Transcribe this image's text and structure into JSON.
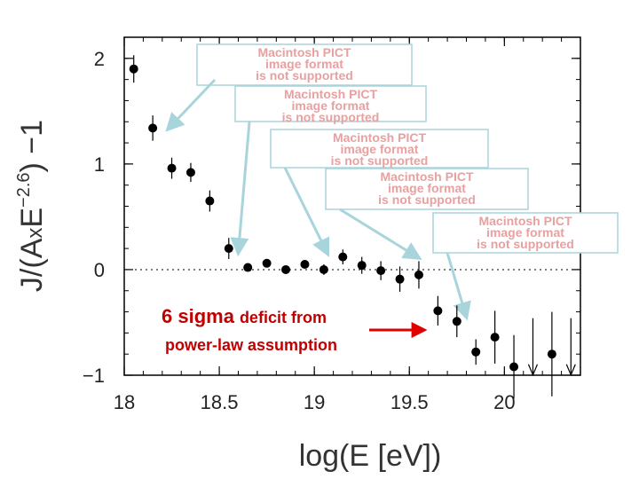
{
  "chart_data": {
    "type": "scatter",
    "title": "",
    "xlabel": "log(E [eV])",
    "ylabel_parts": {
      "pre": "J/(A",
      "times": "x",
      "E": "E",
      "exp": "−2.6",
      "post": ") −1"
    },
    "xlim": [
      18.0,
      20.4
    ],
    "ylim": [
      -1.0,
      2.2
    ],
    "x_ticks": [
      18,
      18.5,
      19,
      19.5,
      20
    ],
    "x_tick_labels": [
      "18",
      "18.5",
      "19",
      "19.5",
      "20"
    ],
    "y_ticks": [
      2,
      1,
      0,
      -1
    ],
    "y_tick_labels": [
      "2",
      "1",
      "0",
      "−1"
    ],
    "reference_line_y": 0,
    "points": [
      {
        "x": 18.05,
        "y": 1.9,
        "err": 0.13
      },
      {
        "x": 18.15,
        "y": 1.34,
        "err": 0.12
      },
      {
        "x": 18.25,
        "y": 0.96,
        "err": 0.1
      },
      {
        "x": 18.35,
        "y": 0.92,
        "err": 0.09
      },
      {
        "x": 18.45,
        "y": 0.65,
        "err": 0.1
      },
      {
        "x": 18.55,
        "y": 0.2,
        "err": 0.1
      },
      {
        "x": 18.65,
        "y": 0.02,
        "err": 0.03
      },
      {
        "x": 18.75,
        "y": 0.06,
        "err": 0.04
      },
      {
        "x": 18.85,
        "y": 0.0,
        "err": 0.03
      },
      {
        "x": 18.95,
        "y": 0.05,
        "err": 0.04
      },
      {
        "x": 19.05,
        "y": 0.0,
        "err": 0.05
      },
      {
        "x": 19.15,
        "y": 0.12,
        "err": 0.07
      },
      {
        "x": 19.25,
        "y": 0.04,
        "err": 0.08
      },
      {
        "x": 19.35,
        "y": -0.01,
        "err": 0.09
      },
      {
        "x": 19.45,
        "y": -0.09,
        "err": 0.12
      },
      {
        "x": 19.55,
        "y": -0.05,
        "err": 0.13
      },
      {
        "x": 19.65,
        "y": -0.39,
        "err": 0.14
      },
      {
        "x": 19.75,
        "y": -0.49,
        "err": 0.15
      },
      {
        "x": 19.85,
        "y": -0.78,
        "err": 0.12
      },
      {
        "x": 19.95,
        "y": -0.64,
        "err": 0.25
      },
      {
        "x": 20.05,
        "y": -0.92,
        "err": 0.3
      },
      {
        "x": 20.25,
        "y": -0.8,
        "err": 0.4
      }
    ],
    "upper_limits": [
      {
        "x": 20.15,
        "y": -0.88
      },
      {
        "x": 20.35,
        "y": -0.88
      }
    ],
    "annotations": {
      "line1_big": "6 sigma",
      "line1_rest": "deficit from",
      "line2": "power-law assumption"
    },
    "pict_placeholders": [
      {
        "lines": [
          "Macintosh PICT",
          "image format",
          "is not supported"
        ],
        "target": {
          "x": 18.23,
          "y": 1.33
        }
      },
      {
        "lines": [
          "Macintosh PICT",
          "image format",
          "is not supported"
        ],
        "target": {
          "x": 18.6,
          "y": 0.16
        }
      },
      {
        "lines": [
          "Macintosh PICT",
          "image format",
          "is not supported"
        ],
        "target": {
          "x": 19.07,
          "y": 0.15
        }
      },
      {
        "lines": [
          "Macintosh PICT",
          "image format",
          "is not supported"
        ],
        "target": {
          "x": 19.55,
          "y": 0.11
        }
      },
      {
        "lines": [
          "Macintosh PICT",
          "image format",
          "is not supported"
        ],
        "target": {
          "x": 19.8,
          "y": -0.45
        }
      }
    ],
    "colors": {
      "markers": "#000000",
      "annotation": "#c00000",
      "arrow_blue": "#a8d4dc",
      "pict_text": "#e8a0a0"
    }
  }
}
